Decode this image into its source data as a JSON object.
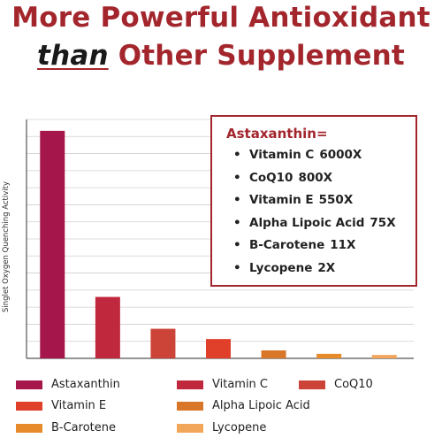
{
  "header": {
    "line1": "More Powerful Antioxidant",
    "line2_emph": "than",
    "line2_rest": "Other Supplement"
  },
  "callout": {
    "title": "Astaxanthin=",
    "bullet": "•",
    "items": [
      {
        "name": "Vitamin C",
        "value": "6000X"
      },
      {
        "name": "CoQ10",
        "value": "800X"
      },
      {
        "name": "Vitamin E",
        "value": "550X"
      },
      {
        "name": "Alpha Lipoic Acid",
        "value": "75X"
      },
      {
        "name": "B-Carotene",
        "value": "11X"
      },
      {
        "name": "Lycopene",
        "value": "2X"
      }
    ]
  },
  "chart_data": {
    "type": "bar",
    "title": "More Powerful Antioxidant than Other Supplement",
    "xlabel": "",
    "ylabel": "Singlet Oxygen Quenching Activity",
    "categories": [
      "Astaxanthin",
      "Vitamin C",
      "CoQ10",
      "Vitamin E",
      "Alpha Lipoic Acid",
      "B-Carotene",
      "Lycopene"
    ],
    "values": [
      100,
      27,
      13,
      8.5,
      3.5,
      2,
      1.5
    ],
    "colors": [
      "#a5174a",
      "#c0283e",
      "#cc4437",
      "#e0402a",
      "#d8762a",
      "#e68a2c",
      "#f2a65a"
    ],
    "ylim": [
      0,
      105
    ],
    "grid": true,
    "legend_position": "bottom"
  }
}
